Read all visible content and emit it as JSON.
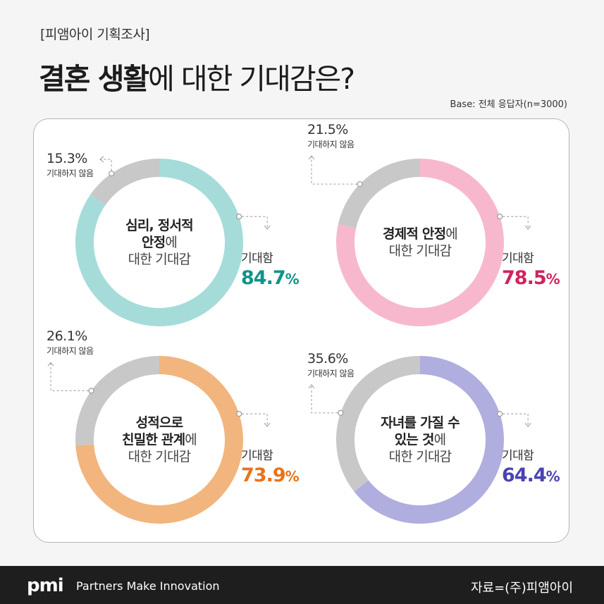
{
  "header": {
    "tag": "[피앰아이 기획조사]",
    "title_bold": "결혼 생활",
    "title_rest": "에 대한 기대감은?",
    "base": "Base: 전체 응답자(n=3000)"
  },
  "chart_data": [
    {
      "type": "donut",
      "center_strong": [
        "심리, 정서적",
        "안정"
      ],
      "center_light_inline": "에",
      "center_light": "대한 기대감",
      "slices": [
        {
          "label": "기대함",
          "value": 84.7,
          "display": "84.7",
          "color": "#a5dcd9"
        },
        {
          "label": "기대하지 않음",
          "value": 15.3,
          "display": "15.3%",
          "color": "#c8c8c8"
        }
      ],
      "accent": "#0f9488"
    },
    {
      "type": "donut",
      "center_strong": [
        "경제적 안정"
      ],
      "center_light_inline": "에",
      "center_light": "대한 기대감",
      "slices": [
        {
          "label": "기대함",
          "value": 78.5,
          "display": "78.5",
          "color": "#f7b8ce"
        },
        {
          "label": "기대하지 않음",
          "value": 21.5,
          "display": "21.5%",
          "color": "#c8c8c8"
        }
      ],
      "accent": "#d0245c"
    },
    {
      "type": "donut",
      "center_strong": [
        "성적으로",
        "친밀한 관계"
      ],
      "center_light_inline": "에",
      "center_light": "대한 기대감",
      "slices": [
        {
          "label": "기대함",
          "value": 73.9,
          "display": "73.9",
          "color": "#f2b57d"
        },
        {
          "label": "기대하지 않음",
          "value": 26.1,
          "display": "26.1%",
          "color": "#c8c8c8"
        }
      ],
      "accent": "#e8731a"
    },
    {
      "type": "donut",
      "center_strong": [
        "자녀를 가질 수",
        "있는 것"
      ],
      "center_light_inline": "에",
      "center_light": "대한 기대감",
      "slices": [
        {
          "label": "기대함",
          "value": 64.4,
          "display": "64.4",
          "color": "#b0addf"
        },
        {
          "label": "기대하지 않음",
          "value": 35.6,
          "display": "35.6%",
          "color": "#c8c8c8"
        }
      ],
      "accent": "#4a43b5"
    }
  ],
  "percent_sign": "%",
  "footer": {
    "logo": "pmi",
    "tagline": "Partners Make Innovation",
    "source": "자료=(주)피앰아이"
  }
}
